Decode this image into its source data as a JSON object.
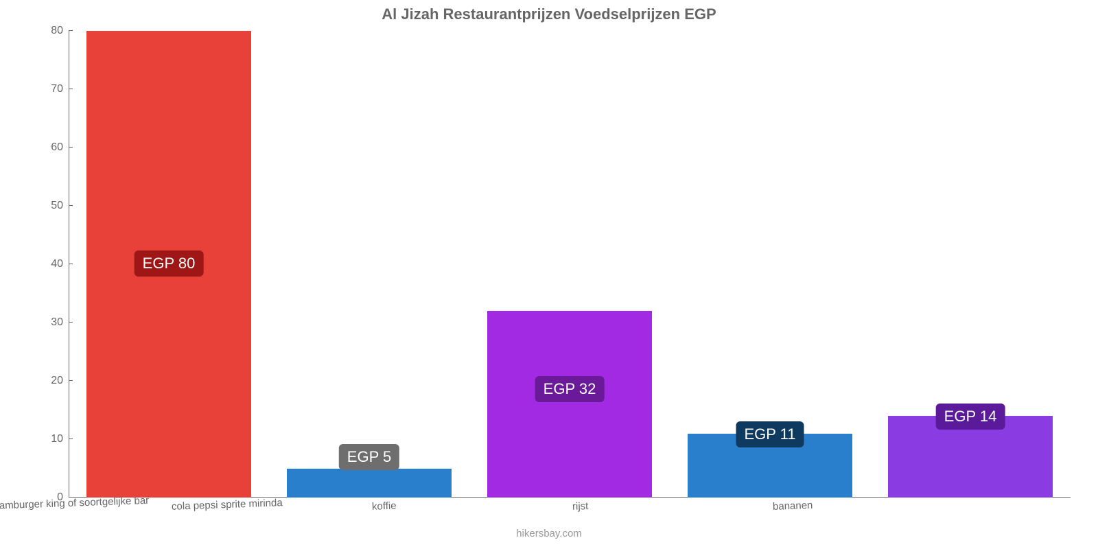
{
  "chart": {
    "type": "bar",
    "title": "Al Jizah Restaurantprijzen Voedselprijzen EGP",
    "title_color": "#666666",
    "title_fontsize": 22,
    "background_color": "#ffffff",
    "axis_color": "#666666",
    "label_color": "#666666",
    "label_fontsize": 15,
    "value_label_fontsize": 22,
    "ylim": [
      0,
      80
    ],
    "yticks": [
      0,
      10,
      20,
      30,
      40,
      50,
      60,
      70,
      80
    ],
    "bar_width_pct": 82,
    "categories": [
      "mac hamburger king of soortgelijke bar",
      "cola pepsi sprite mirinda",
      "koffie",
      "rijst",
      "bananen"
    ],
    "values": [
      80,
      5,
      32,
      11,
      14
    ],
    "value_labels": [
      "EGP 80",
      "EGP 5",
      "EGP 32",
      "EGP 11",
      "EGP 14"
    ],
    "bar_colors": [
      "#e8413a",
      "#2a7fcc",
      "#a22ae2",
      "#2a7fcc",
      "#8a3be2"
    ],
    "badge_colors": [
      "#9e1616",
      "#6e6e6e",
      "#6a1a99",
      "#0f3a5f",
      "#5a1a99"
    ],
    "badge_offsets_pct": [
      47,
      -6,
      35,
      -3,
      -3
    ]
  },
  "attribution": "hikersbay.com"
}
